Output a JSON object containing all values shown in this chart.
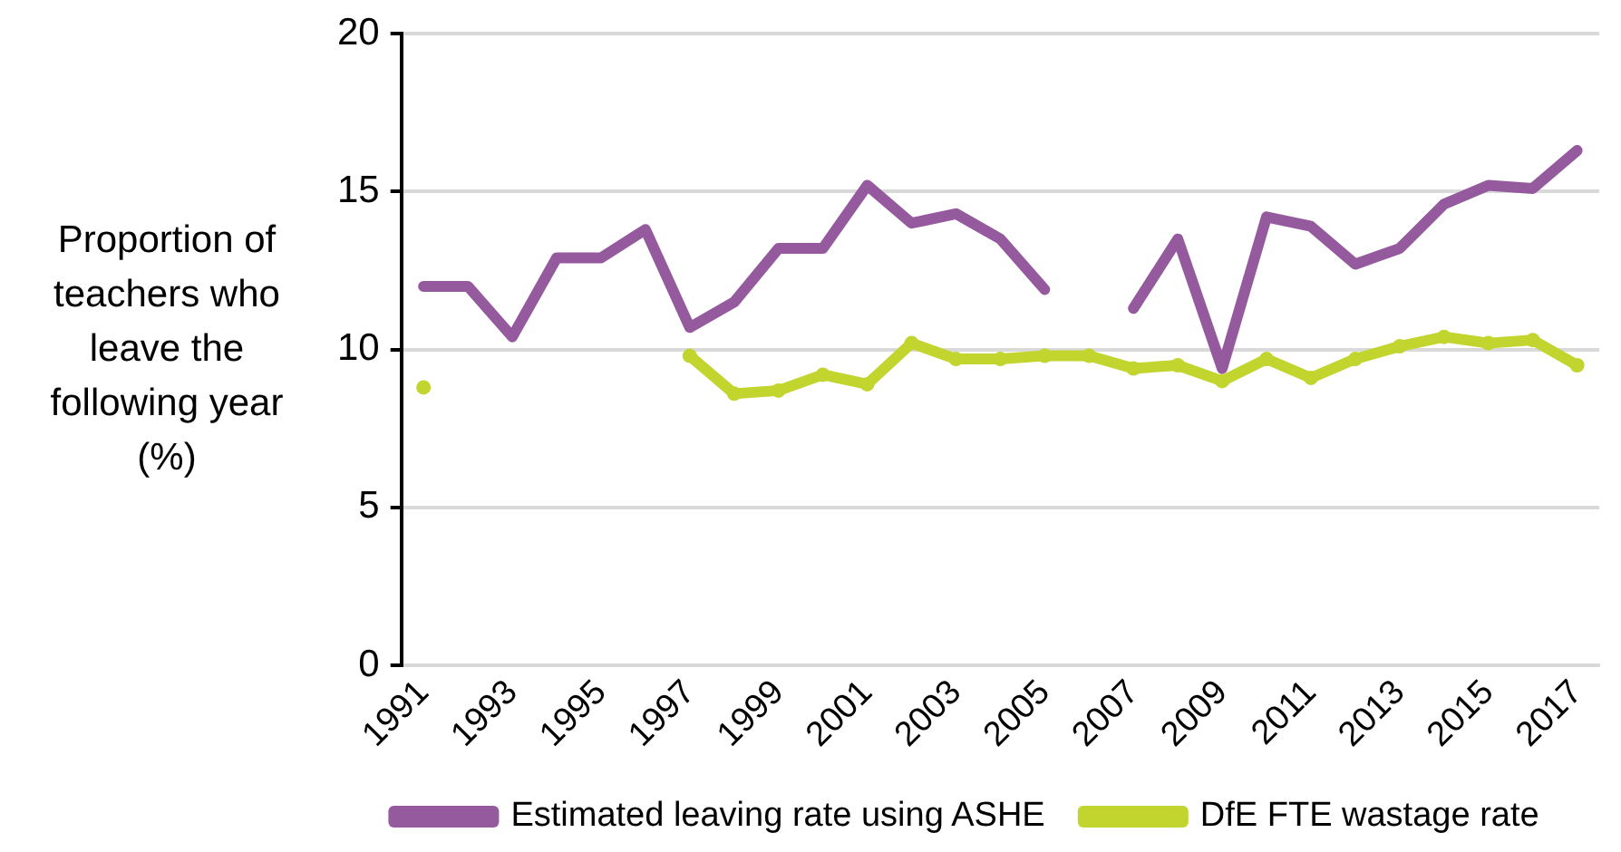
{
  "chart_data": {
    "type": "line",
    "ylabel": "Proportion of teachers who leave the following year (%)",
    "categories": [
      "1991",
      null,
      "1993",
      null,
      "1995",
      null,
      "1997",
      null,
      "1999",
      null,
      "2001",
      null,
      "2003",
      null,
      "2005",
      null,
      "2007",
      null,
      "2009",
      null,
      "2011",
      null,
      "2013",
      null,
      "2015",
      null,
      "2017"
    ],
    "series": [
      {
        "name": "Estimated leaving rate using ASHE",
        "color": "#955a9e",
        "marker": "none",
        "values": [
          12.0,
          12.0,
          10.4,
          12.9,
          12.9,
          13.8,
          10.7,
          11.5,
          13.2,
          13.2,
          15.2,
          14.0,
          14.3,
          13.5,
          11.9,
          null,
          11.3,
          13.5,
          9.4,
          14.2,
          13.9,
          12.7,
          13.2,
          14.6,
          15.2,
          15.1,
          16.3
        ]
      },
      {
        "name": "DfE FTE wastage rate",
        "color": "#c2d52e",
        "marker": "circle",
        "values": [
          8.8,
          null,
          null,
          null,
          null,
          null,
          9.8,
          8.6,
          8.7,
          9.2,
          8.9,
          10.2,
          9.7,
          9.7,
          9.8,
          9.8,
          9.4,
          9.5,
          9.0,
          9.7,
          9.1,
          9.7,
          10.1,
          10.4,
          10.2,
          10.3,
          9.5
        ]
      }
    ],
    "ylim": [
      0,
      20
    ],
    "yticks": [
      0,
      5,
      10,
      15,
      20
    ],
    "grid": "y",
    "legend": "bottom",
    "line_style": "solid"
  }
}
